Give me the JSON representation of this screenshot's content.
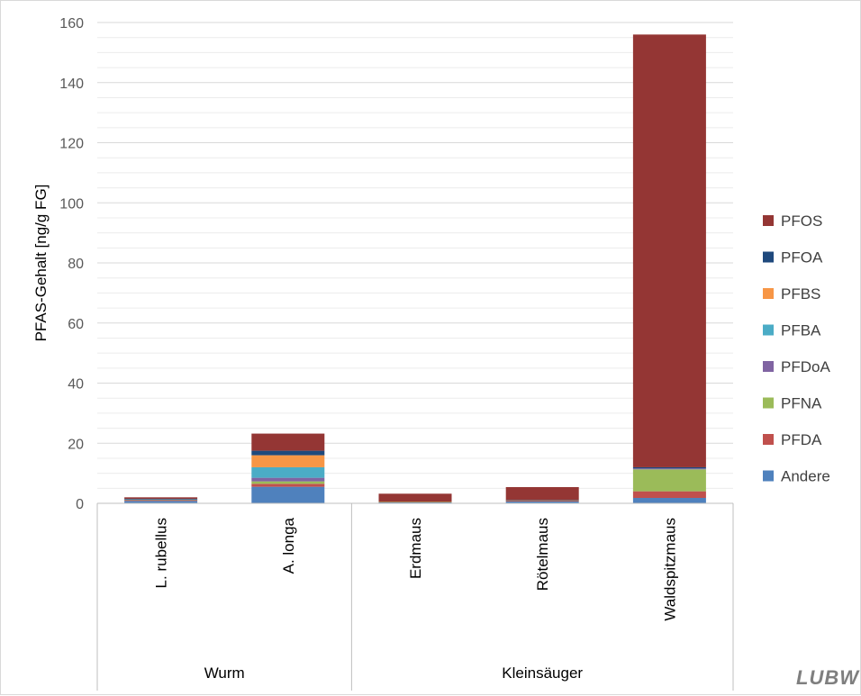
{
  "logo_text": "LUBW",
  "chart_data": {
    "type": "bar",
    "stacked": true,
    "ylabel": "PFAS-Gehalt [ng/g FG]",
    "ylim": [
      0,
      160
    ],
    "yticks": [
      0,
      20,
      40,
      60,
      80,
      100,
      120,
      140,
      160
    ],
    "grid": true,
    "legend_position": "right",
    "categories": [
      "L. rubellus",
      "A. longa",
      "Erdmaus",
      "Rötelmaus",
      "Waldspitzmaus"
    ],
    "groups": [
      {
        "label": "Wurm",
        "categories": [
          "L. rubellus",
          "A. longa"
        ]
      },
      {
        "label": "Kleinsäuger",
        "categories": [
          "Erdmaus",
          "Rötelmaus",
          "Waldspitzmaus"
        ]
      }
    ],
    "series": [
      {
        "name": "Andere",
        "color": "#4f81bd",
        "values": [
          0.8,
          5.5,
          0.3,
          0.6,
          1.8
        ]
      },
      {
        "name": "PFDA",
        "color": "#c0504d",
        "values": [
          0.3,
          1.0,
          0.2,
          0.3,
          2.2
        ]
      },
      {
        "name": "PFNA",
        "color": "#9bbb59",
        "values": [
          0.1,
          0.8,
          0.1,
          0.1,
          7.3
        ]
      },
      {
        "name": "PFDoA",
        "color": "#8064a2",
        "values": [
          0.1,
          1.2,
          0.0,
          0.0,
          0.3
        ]
      },
      {
        "name": "PFBA",
        "color": "#4bacc6",
        "values": [
          0.1,
          3.5,
          0.0,
          0.0,
          0.0
        ]
      },
      {
        "name": "PFBS",
        "color": "#f79646",
        "values": [
          0.0,
          4.0,
          0.0,
          0.0,
          0.0
        ]
      },
      {
        "name": "PFOA",
        "color": "#1f497d",
        "values": [
          0.1,
          1.5,
          0.0,
          0.1,
          0.4
        ]
      },
      {
        "name": "PFOS",
        "color": "#943634",
        "values": [
          0.5,
          5.7,
          2.6,
          4.3,
          144.0
        ]
      }
    ]
  }
}
